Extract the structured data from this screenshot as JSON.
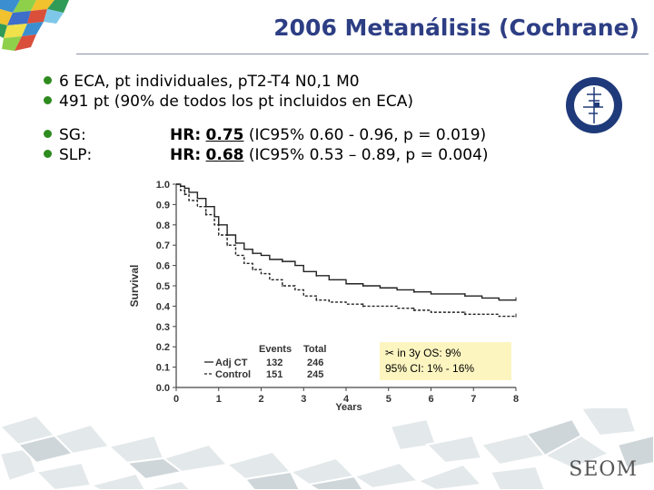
{
  "slide": {
    "title": "2006 Metanálisis (Cochrane)",
    "bullets": [
      "6 ECA, pt individuales, pT2-T4 N0,1 M0",
      "491 pt (90% de todos los pt incluidos en ECA)",
      "SG:",
      "SLP:"
    ],
    "hr_rows": [
      {
        "label": "HR:",
        "value": "0.75",
        "detail": "(IC95% 0.60 - 0.96, p = 0.019)"
      },
      {
        "label": "HR:",
        "value": "0.68",
        "detail": "(IC95% 0.53 – 0.89, p = 0.004)"
      }
    ],
    "annotation": {
      "line1": "in 3y OS: 9%",
      "line2": "95% CI: 1% - 16%",
      "icon": "scissors-icon"
    },
    "footer_logo": "SEOM",
    "colors": {
      "title": "#2d3e84",
      "bullet": "#2e8b1f",
      "annotation_bg": "#fdf5c0"
    }
  },
  "chart_data": {
    "type": "line",
    "title": "",
    "xlabel": "Years",
    "ylabel": "Survival",
    "xlim": [
      0,
      8
    ],
    "ylim": [
      0,
      1
    ],
    "x_ticks": [
      "0",
      "1",
      "2",
      "3",
      "4",
      "5",
      "6",
      "7",
      "8"
    ],
    "y_ticks": [
      "0.0",
      "0.1",
      "0.2",
      "0.3",
      "0.4",
      "0.5",
      "0.6",
      "0.7",
      "0.8",
      "0.9",
      "1.0"
    ],
    "legend": {
      "position": "bottom-left",
      "header": [
        "Events",
        "Total"
      ],
      "rows": [
        {
          "name": "Adj CT",
          "events": "132",
          "total": "246"
        },
        {
          "name": "Control",
          "events": "151",
          "total": "245"
        }
      ]
    },
    "series": [
      {
        "name": "Adj CT",
        "style": "solid",
        "color": "#222222",
        "x": [
          0,
          0.1,
          0.2,
          0.3,
          0.5,
          0.7,
          0.9,
          1.0,
          1.2,
          1.4,
          1.6,
          1.8,
          2.0,
          2.2,
          2.5,
          2.8,
          3.0,
          3.3,
          3.6,
          4.0,
          4.4,
          4.8,
          5.2,
          5.6,
          6.0,
          6.4,
          6.8,
          7.2,
          7.6,
          8.0
        ],
        "y": [
          1.0,
          0.99,
          0.98,
          0.96,
          0.93,
          0.89,
          0.84,
          0.8,
          0.75,
          0.71,
          0.68,
          0.66,
          0.65,
          0.63,
          0.62,
          0.6,
          0.57,
          0.55,
          0.53,
          0.51,
          0.5,
          0.49,
          0.48,
          0.47,
          0.46,
          0.46,
          0.45,
          0.44,
          0.43,
          0.43
        ]
      },
      {
        "name": "Control",
        "style": "dashed",
        "color": "#222222",
        "x": [
          0,
          0.1,
          0.2,
          0.3,
          0.5,
          0.7,
          0.9,
          1.0,
          1.2,
          1.4,
          1.6,
          1.8,
          2.0,
          2.2,
          2.5,
          2.8,
          3.0,
          3.3,
          3.6,
          4.0,
          4.4,
          4.8,
          5.2,
          5.6,
          6.0,
          6.4,
          6.8,
          7.2,
          7.6,
          8.0
        ],
        "y": [
          1.0,
          0.97,
          0.95,
          0.92,
          0.89,
          0.85,
          0.8,
          0.75,
          0.7,
          0.65,
          0.61,
          0.58,
          0.56,
          0.53,
          0.5,
          0.48,
          0.45,
          0.43,
          0.42,
          0.41,
          0.4,
          0.4,
          0.39,
          0.38,
          0.37,
          0.37,
          0.36,
          0.36,
          0.35,
          0.35
        ]
      }
    ]
  }
}
